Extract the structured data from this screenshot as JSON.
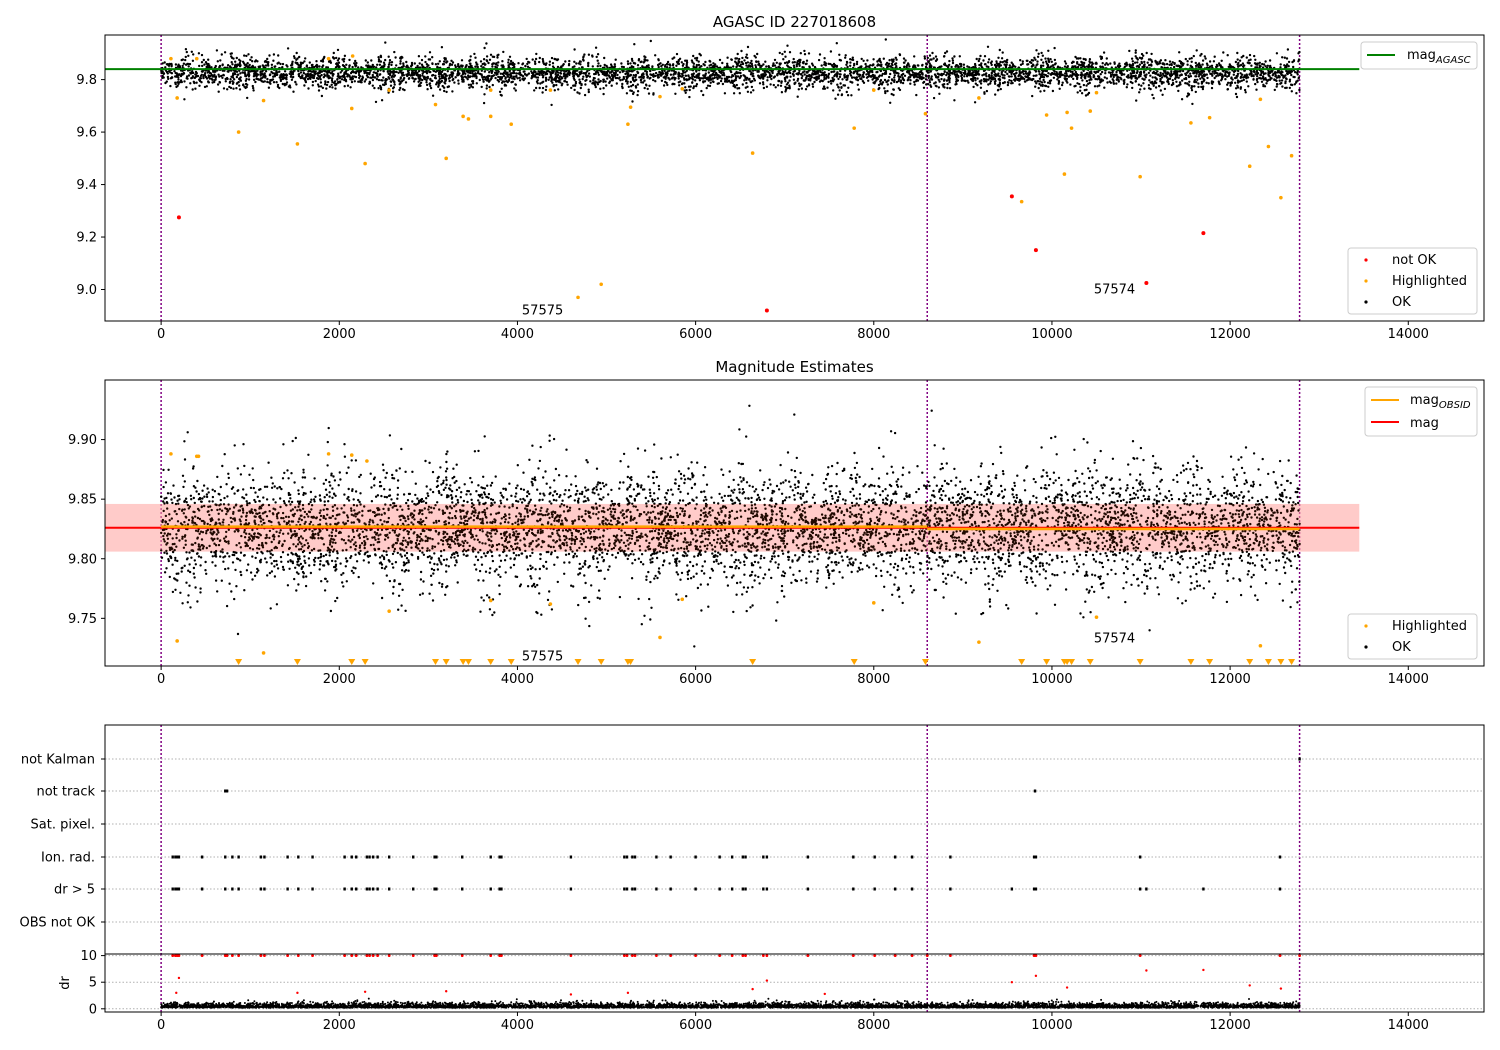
{
  "chart_data": [
    {
      "type": "scatter",
      "title": "AGASC ID 227018608",
      "xlabel": "",
      "ylabel": "",
      "xlim": [
        -630,
        14850
      ],
      "ylim": [
        8.88,
        9.97
      ],
      "xticks": [
        "0",
        "2000",
        "4000",
        "6000",
        "8000",
        "10000",
        "12000",
        "14000"
      ],
      "yticks": [
        "9.0",
        "9.2",
        "9.4",
        "9.6",
        "9.8"
      ],
      "vlines_x": [
        0,
        8600,
        12780
      ],
      "hline": {
        "name": "mag",
        "subscript": "AGASC",
        "y": 9.84,
        "color": "#008000"
      },
      "ok_band": {
        "x_range": [
          0,
          12780
        ],
        "center": 9.825,
        "spread": 0.028
      },
      "highlighted": [
        [
          110,
          9.88
        ],
        [
          180,
          9.73
        ],
        [
          400,
          9.88
        ],
        [
          870,
          9.6
        ],
        [
          1150,
          9.72
        ],
        [
          1530,
          9.555
        ],
        [
          1880,
          9.88
        ],
        [
          2140,
          9.69
        ],
        [
          2150,
          9.89
        ],
        [
          2290,
          9.48
        ],
        [
          2560,
          9.76
        ],
        [
          3080,
          9.705
        ],
        [
          3200,
          9.5
        ],
        [
          3390,
          9.66
        ],
        [
          3450,
          9.65
        ],
        [
          3700,
          9.66
        ],
        [
          3700,
          9.76
        ],
        [
          3930,
          9.63
        ],
        [
          4370,
          9.76
        ],
        [
          4680,
          8.97
        ],
        [
          4940,
          9.02
        ],
        [
          5240,
          9.63
        ],
        [
          5270,
          9.695
        ],
        [
          5600,
          9.735
        ],
        [
          5850,
          9.765
        ],
        [
          6640,
          9.52
        ],
        [
          7780,
          9.615
        ],
        [
          8000,
          9.76
        ],
        [
          8580,
          9.67
        ],
        [
          9180,
          9.73
        ],
        [
          9660,
          9.335
        ],
        [
          9940,
          9.665
        ],
        [
          10140,
          9.44
        ],
        [
          10170,
          9.675
        ],
        [
          10220,
          9.615
        ],
        [
          10430,
          9.68
        ],
        [
          10500,
          9.75
        ],
        [
          10990,
          9.43
        ],
        [
          11560,
          9.635
        ],
        [
          11770,
          9.655
        ],
        [
          12220,
          9.47
        ],
        [
          12340,
          9.725
        ],
        [
          12430,
          9.545
        ],
        [
          12570,
          9.35
        ],
        [
          12690,
          9.51
        ]
      ],
      "not_ok": [
        [
          200,
          9.275
        ],
        [
          6800,
          8.92
        ],
        [
          9550,
          9.355
        ],
        [
          9820,
          9.15
        ],
        [
          11060,
          9.025
        ],
        [
          11700,
          9.215
        ]
      ],
      "annotations": [
        {
          "text": "57575",
          "x": 4050,
          "y": 8.92
        },
        {
          "text": "57574",
          "x": 10470,
          "y": 9.0
        }
      ],
      "legend": [
        "not OK",
        "Highlighted",
        "OK"
      ],
      "colors": {
        "ok": "#000000",
        "highlighted": "#ffa500",
        "not_ok": "#ff0000",
        "vline": "#800080",
        "mag": "#008000"
      }
    },
    {
      "type": "scatter",
      "title": "Magnitude Estimates",
      "xlabel": "",
      "ylabel": "",
      "xlim": [
        -630,
        14850
      ],
      "ylim": [
        9.71,
        9.95
      ],
      "xticks": [
        "0",
        "2000",
        "4000",
        "6000",
        "8000",
        "10000",
        "12000",
        "14000"
      ],
      "yticks": [
        "9.75",
        "9.80",
        "9.85",
        "9.90"
      ],
      "vlines_x": [
        0,
        8600,
        12780
      ],
      "mag_line": {
        "name": "mag",
        "y": 9.826,
        "color": "#ff0000"
      },
      "mag_band": {
        "y_range": [
          9.806,
          9.846
        ],
        "x_range": [
          -630,
          13450
        ],
        "color": "#ffc0cb"
      },
      "mag_obsid_segments": {
        "name": "mag",
        "subscript": "OBSID",
        "color": "#ffa500",
        "segments": [
          [
            0,
            8600,
            9.827
          ],
          [
            8600,
            12780,
            9.825
          ]
        ]
      },
      "ok_band": {
        "x_range": [
          0,
          12780
        ],
        "center": 9.826,
        "spread": 0.022
      },
      "highlighted": [
        [
          110,
          9.888
        ],
        [
          180,
          9.731
        ],
        [
          400,
          9.886
        ],
        [
          420,
          9.886
        ],
        [
          1150,
          9.721
        ],
        [
          1880,
          9.888
        ],
        [
          2140,
          9.887
        ],
        [
          2310,
          9.882
        ],
        [
          2560,
          9.756
        ],
        [
          3700,
          9.765
        ],
        [
          4370,
          9.762
        ],
        [
          5600,
          9.734
        ],
        [
          5850,
          9.766
        ],
        [
          8000,
          9.763
        ],
        [
          9180,
          9.73
        ],
        [
          10500,
          9.751
        ],
        [
          12340,
          9.727
        ]
      ],
      "clipped_markers_x": [
        870,
        1530,
        2140,
        2290,
        3080,
        3200,
        3390,
        3450,
        3700,
        3930,
        4680,
        4940,
        5240,
        5270,
        6640,
        7780,
        8580,
        9660,
        9940,
        10140,
        10170,
        10220,
        10430,
        10990,
        11560,
        11770,
        12220,
        12430,
        12570,
        12690
      ],
      "annotations": [
        {
          "text": "57575",
          "x": 4050,
          "y": 9.718
        },
        {
          "text": "57574",
          "x": 10470,
          "y": 9.733
        }
      ],
      "legend_top": [
        "mag",
        "mag"
      ],
      "legend_bottom": [
        "Highlighted",
        "OK"
      ]
    },
    {
      "type": "scatter",
      "title": "",
      "xlim": [
        -630,
        14850
      ],
      "xticks": [
        "0",
        "2000",
        "4000",
        "6000",
        "8000",
        "10000",
        "12000",
        "14000"
      ],
      "vlines_x": [
        0,
        8600,
        12780
      ],
      "flag_rows": [
        "not Kalman",
        "not track",
        "Sat. pixel.",
        "Ion. rad.",
        "dr > 5",
        "OBS not OK"
      ],
      "flags": {
        "not track": [
          720,
          740,
          9810
        ],
        "Ion. rad.": [
          130,
          160,
          180,
          200,
          460,
          720,
          800,
          870,
          1120,
          1160,
          1420,
          1540,
          1700,
          2060,
          2140,
          2190,
          2310,
          2340,
          2380,
          2430,
          2560,
          2830,
          3070,
          3090,
          3380,
          3700,
          3800,
          3820,
          4600,
          5200,
          5230,
          5290,
          5320,
          5560,
          5720,
          6000,
          6270,
          6410,
          6530,
          6560,
          6760,
          6800,
          7260,
          7770,
          8010,
          8240,
          8430,
          8860,
          9800,
          9820,
          10990,
          12560
        ],
        "dr > 5": [
          130,
          160,
          180,
          200,
          460,
          720,
          800,
          870,
          1120,
          1160,
          1420,
          1540,
          1700,
          2060,
          2140,
          2190,
          2310,
          2340,
          2380,
          2430,
          2560,
          2830,
          3070,
          3090,
          3380,
          3700,
          3800,
          3820,
          4600,
          5200,
          5230,
          5290,
          5320,
          5560,
          5720,
          6000,
          6270,
          6410,
          6530,
          6560,
          6760,
          6800,
          7260,
          7770,
          8010,
          8240,
          8430,
          8860,
          9550,
          9800,
          9820,
          10990,
          11060,
          11700,
          12560
        ],
        "not Kalman": [
          12780
        ]
      },
      "dr_panel": {
        "ylabel": "dr",
        "yticks": [
          "0",
          "5",
          "10"
        ],
        "ylim": [
          -0.6,
          10.3
        ],
        "high_x": [
          130,
          160,
          180,
          200,
          460,
          720,
          740,
          800,
          870,
          1120,
          1160,
          1420,
          1540,
          1700,
          2060,
          2140,
          2190,
          2310,
          2340,
          2380,
          2430,
          2560,
          2830,
          3070,
          3090,
          3380,
          3700,
          3800,
          3820,
          4600,
          5200,
          5230,
          5290,
          5320,
          5560,
          5720,
          6000,
          6270,
          6410,
          6530,
          6560,
          6760,
          6800,
          7260,
          7770,
          8010,
          8240,
          8430,
          8600,
          8860,
          9800,
          9820,
          10990,
          12560,
          12780
        ],
        "mid_points": [
          [
            200,
            5.8
          ],
          [
            9550,
            5.0
          ],
          [
            9820,
            6.2
          ],
          [
            10170,
            4.0
          ],
          [
            11060,
            7.2
          ],
          [
            11700,
            7.3
          ],
          [
            12220,
            4.4
          ],
          [
            12570,
            3.8
          ],
          [
            6800,
            5.3
          ],
          [
            6640,
            3.7
          ],
          [
            2290,
            3.2
          ],
          [
            3200,
            3.3
          ],
          [
            5240,
            3.0
          ],
          [
            1530,
            3.0
          ],
          [
            170,
            3.0
          ],
          [
            4600,
            2.7
          ],
          [
            7450,
            2.8
          ]
        ]
      }
    }
  ]
}
